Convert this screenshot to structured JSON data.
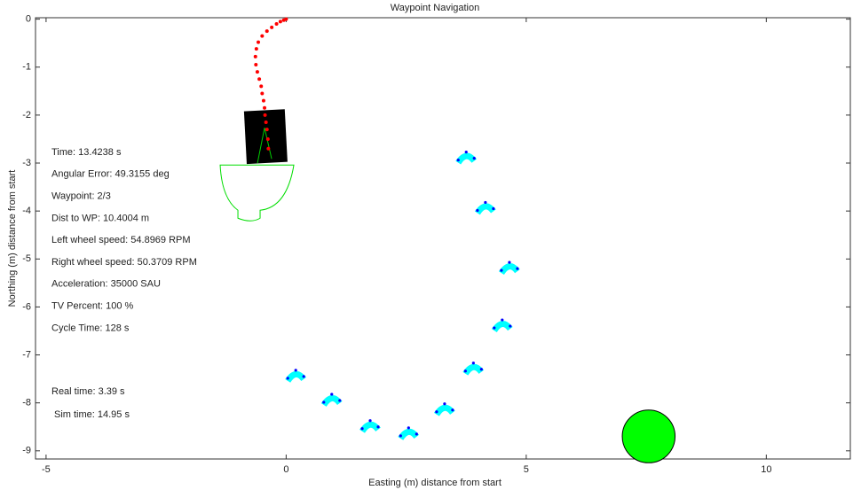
{
  "chart_data": {
    "type": "scatter",
    "title": "Waypoint Navigation",
    "x_label": "Easting (m) distance from start",
    "y_label": "Northing (m) distance from start",
    "xlim": [
      -5.22,
      11.75
    ],
    "ylim": [
      -9.17,
      0.03
    ],
    "xticks": [
      -5,
      0,
      5,
      10
    ],
    "yticks": [
      0,
      -1,
      -2,
      -3,
      -4,
      -5,
      -6,
      -7,
      -8,
      -9
    ],
    "path": {
      "color": "#ff0000",
      "x": [
        0,
        -0.05,
        -0.12,
        -0.2,
        -0.3,
        -0.4,
        -0.5,
        -0.58,
        -0.62,
        -0.64,
        -0.63,
        -0.6,
        -0.56,
        -0.52,
        -0.5,
        -0.47,
        -0.45,
        -0.44,
        -0.42,
        -0.4,
        -0.38,
        -0.37
      ],
      "y": [
        0,
        -0.02,
        -0.05,
        -0.1,
        -0.17,
        -0.25,
        -0.35,
        -0.48,
        -0.62,
        -0.78,
        -0.95,
        -1.1,
        -1.25,
        -1.4,
        -1.55,
        -1.7,
        -1.85,
        -2.0,
        -2.15,
        -2.3,
        -2.5,
        -2.7
      ]
    },
    "obstacles": {
      "color": "#00ffff",
      "x": [
        3.75,
        4.15,
        4.65,
        4.5,
        3.9,
        0.2,
        0.95,
        1.75,
        2.55,
        3.3
      ],
      "y": [
        -2.9,
        -3.95,
        -5.2,
        -6.4,
        -7.3,
        -7.45,
        -7.95,
        -8.5,
        -8.65,
        -8.15
      ]
    },
    "robot": {
      "color": "#000000",
      "x": -0.45,
      "y": -2.45
    },
    "goal": {
      "color": "#00ff00",
      "x": 7.55,
      "y": -8.7
    },
    "annotations": [
      "Time: 13.4238 s",
      "Angular Error: 49.3155 deg",
      "Waypoint: 2/3",
      "Dist to WP: 10.4004 m",
      "Left wheel speed: 54.8969 RPM",
      "Right wheel speed: 50.3709 RPM",
      "Acceleration: 35000 SAU",
      "TV Percent: 100 %",
      "Cycle Time: 128 s",
      "Real time: 3.39 s",
      "Sim time: 14.95 s"
    ]
  }
}
